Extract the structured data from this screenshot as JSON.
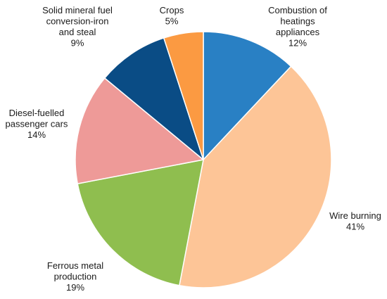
{
  "chart_data": {
    "type": "pie",
    "start_angle_deg": 0,
    "direction": "clockwise",
    "slices": [
      {
        "label": "Combustion of heatings appliances",
        "label_lines": [
          "Combustion of",
          "heatings",
          "appliances"
        ],
        "value": 12,
        "value_label": "12%",
        "color": "#2980C4"
      },
      {
        "label": "Wire burning",
        "label_lines": [
          "Wire burning"
        ],
        "value": 41,
        "value_label": "41%",
        "color": "#FDC597"
      },
      {
        "label": "Ferrous metal production",
        "label_lines": [
          "Ferrous metal",
          "production"
        ],
        "value": 19,
        "value_label": "19%",
        "color": "#8FBE4F"
      },
      {
        "label": "Diesel-fuelled passenger cars",
        "label_lines": [
          "Diesel-fuelled",
          "passenger cars"
        ],
        "value": 14,
        "value_label": "14%",
        "color": "#EE9A98"
      },
      {
        "label": "Solid mineral fuel conversion-iron and steal",
        "label_lines": [
          "Solid mineral fuel",
          "conversion-iron",
          "and steal"
        ],
        "value": 9,
        "value_label": "9%",
        "color": "#0A4C85"
      },
      {
        "label": "Crops",
        "label_lines": [
          "Crops"
        ],
        "value": 5,
        "value_label": "5%",
        "color": "#FB9A42"
      }
    ]
  }
}
